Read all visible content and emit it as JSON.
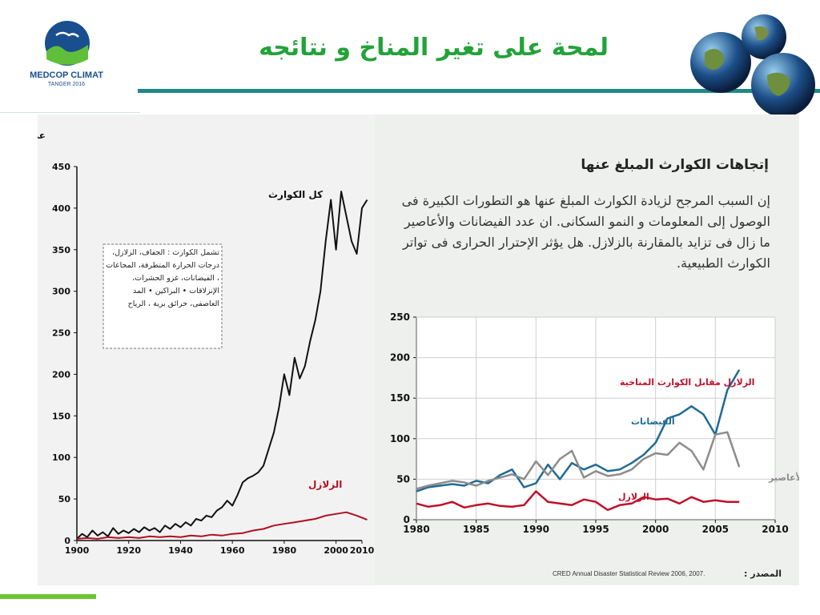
{
  "slide": {
    "title": "لمحة على تغير المناخ و نتائجه",
    "logo": {
      "name": "MEDCOP CLIMAT",
      "sub": "TANGER 2016"
    },
    "colors": {
      "title": "#22a33a",
      "rule": "#1f8a87",
      "accent": "#6cc431"
    }
  },
  "left_chart": {
    "ylabel": "عدد الكوارث فى العام",
    "series_labels": {
      "all": "كل الكوارث",
      "earthquakes": "الزلازل"
    },
    "note": "تشمل الكوارث : الجفاف، الزلازل، درجات الحرارة المتطرفة، المجاعات ، الفيضانات، غزو الحشرات، الإنزلاقات • البراكين • المد العاصفى، حرائق برية ، الرياح"
  },
  "right_panel": {
    "heading": "إتجاهات الكوارث المبلغ عنها",
    "paragraph": "إن السبب المرجح لزيادة الكوارث المبلغ عنها هو التطورات الكبيرة فى الوصول إلى المعلومات و النمو السكانى. ان عدد الفيضانات والأعاصير ما زال فى تزايد بالمقارنة بالزلازل. هل يؤثر الإحترار الحرارى فى تواتر الكوارث الطبيعية.",
    "chart_title": "الزلازل مقابل الكوارث المناخية",
    "source_label": "المصدر :",
    "source_text": "CRED Annual Disaster Statistical Review 2006, 2007."
  },
  "chart_data": [
    {
      "type": "line",
      "ylabel": "عدد الكوارث فى العام",
      "xlim": [
        1900,
        2010
      ],
      "ylim": [
        0,
        450
      ],
      "xticks": [
        "1900",
        "1920",
        "1940",
        "1960",
        "1980",
        "2000",
        "2010"
      ],
      "yticks": [
        "0",
        "50",
        "100",
        "150",
        "200",
        "250",
        "300",
        "350",
        "400",
        "450"
      ],
      "grid": false,
      "series": [
        {
          "name": "كل الكوارث",
          "color": "#111111",
          "x": [
            1900,
            1902,
            1904,
            1906,
            1908,
            1910,
            1912,
            1914,
            1916,
            1918,
            1920,
            1922,
            1924,
            1926,
            1928,
            1930,
            1932,
            1934,
            1936,
            1938,
            1940,
            1942,
            1944,
            1946,
            1948,
            1950,
            1952,
            1954,
            1956,
            1958,
            1960,
            1962,
            1964,
            1966,
            1968,
            1970,
            1972,
            1974,
            1976,
            1978,
            1980,
            1982,
            1984,
            1986,
            1988,
            1990,
            1992,
            1994,
            1996,
            1998,
            2000,
            2002,
            2004,
            2006,
            2008,
            2010,
            2012
          ],
          "y": [
            2,
            8,
            4,
            12,
            6,
            10,
            5,
            15,
            8,
            12,
            9,
            14,
            10,
            16,
            12,
            15,
            10,
            18,
            14,
            20,
            16,
            22,
            18,
            26,
            24,
            30,
            28,
            36,
            40,
            48,
            42,
            55,
            70,
            75,
            78,
            82,
            90,
            110,
            130,
            160,
            200,
            175,
            220,
            195,
            210,
            240,
            265,
            300,
            360,
            410,
            350,
            420,
            390,
            360,
            345,
            400,
            410
          ]
        },
        {
          "name": "الزلازل",
          "color": "#b01020",
          "x": [
            1900,
            1904,
            1908,
            1912,
            1916,
            1920,
            1924,
            1928,
            1932,
            1936,
            1940,
            1944,
            1948,
            1952,
            1956,
            1960,
            1964,
            1968,
            1972,
            1976,
            1980,
            1984,
            1988,
            1992,
            1996,
            2000,
            2004,
            2008,
            2012
          ],
          "y": [
            2,
            3,
            2,
            4,
            3,
            4,
            3,
            5,
            4,
            5,
            4,
            6,
            5,
            7,
            6,
            8,
            9,
            12,
            14,
            18,
            20,
            22,
            24,
            26,
            30,
            32,
            34,
            30,
            25
          ]
        }
      ]
    },
    {
      "type": "line",
      "title": "الزلازل مقابل الكوارث المناخية",
      "xlim": [
        1980,
        2010
      ],
      "ylim": [
        0,
        250
      ],
      "xticks": [
        "1980",
        "1985",
        "1990",
        "1995",
        "2000",
        "2005",
        "2010"
      ],
      "yticks": [
        "0",
        "50",
        "100",
        "150",
        "200",
        "250"
      ],
      "grid": true,
      "series": [
        {
          "name": "الفيضانات",
          "color": "#1f6a96",
          "x": [
            1980,
            1981,
            1982,
            1983,
            1984,
            1985,
            1986,
            1987,
            1988,
            1989,
            1990,
            1991,
            1992,
            1993,
            1994,
            1995,
            1996,
            1997,
            1998,
            1999,
            2000,
            2001,
            2002,
            2003,
            2004,
            2005,
            2006,
            2007
          ],
          "y": [
            35,
            40,
            42,
            44,
            42,
            48,
            45,
            55,
            62,
            40,
            45,
            68,
            50,
            70,
            62,
            68,
            60,
            62,
            70,
            80,
            95,
            125,
            130,
            140,
            130,
            105,
            160,
            185
          ]
        },
        {
          "name": "الأعاصير",
          "color": "#8c8c8c",
          "x": [
            1980,
            1981,
            1982,
            1983,
            1984,
            1985,
            1986,
            1987,
            1988,
            1989,
            1990,
            1991,
            1992,
            1993,
            1994,
            1995,
            1996,
            1997,
            1998,
            1999,
            2000,
            2001,
            2002,
            2003,
            2004,
            2005,
            2006,
            2007
          ],
          "y": [
            38,
            42,
            45,
            48,
            46,
            42,
            48,
            52,
            56,
            50,
            72,
            55,
            75,
            85,
            52,
            60,
            54,
            56,
            62,
            75,
            82,
            80,
            95,
            85,
            62,
            105,
            108,
            65
          ]
        },
        {
          "name": "الزلازل",
          "color": "#c0102a",
          "x": [
            1980,
            1981,
            1982,
            1983,
            1984,
            1985,
            1986,
            1987,
            1988,
            1989,
            1990,
            1991,
            1992,
            1993,
            1994,
            1995,
            1996,
            1997,
            1998,
            1999,
            2000,
            2001,
            2002,
            2003,
            2004,
            2005,
            2006,
            2007
          ],
          "y": [
            20,
            16,
            18,
            22,
            15,
            18,
            20,
            17,
            16,
            18,
            35,
            22,
            20,
            18,
            25,
            22,
            12,
            18,
            20,
            28,
            25,
            26,
            20,
            28,
            22,
            24,
            22,
            22
          ]
        }
      ]
    }
  ]
}
